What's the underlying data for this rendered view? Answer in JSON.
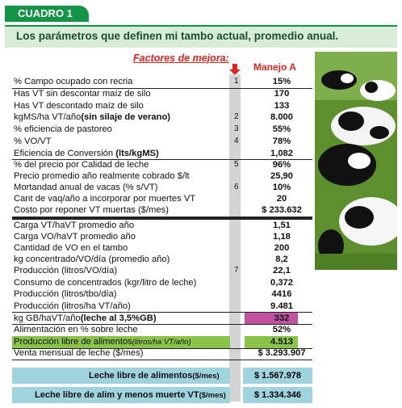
{
  "header": {
    "tab": "CUADRO 1",
    "subtitle": "Los parámetros que definen mi tambo actual, promedio anual."
  },
  "columns": {
    "factores": "Factores de mejora:",
    "manejo": "Manejo A"
  },
  "rows": [
    {
      "label": "% Campo ocupado con recria",
      "num": "1",
      "value": "15%"
    },
    {
      "label": "Has VT sin  descontar maíz de silo",
      "num": "",
      "value": "170"
    },
    {
      "label": "Has VT descontado maíz de silo",
      "num": "",
      "value": "133"
    },
    {
      "label": "kgMS/ha VT/año",
      "bold": "(sin silaje de verano)",
      "num": "2",
      "value": "8.000"
    },
    {
      "label": "% eficiencia de  pastoreo",
      "num": "3",
      "value": "55%"
    },
    {
      "label": "% VO/VT",
      "num": "4",
      "value": "78%"
    },
    {
      "label": "Eficiencia de Conversión ",
      "bold": "(lts/kgMS)",
      "num": "",
      "value": "1,082"
    },
    {
      "label": "% del precio por Calidad de leche",
      "num": "5",
      "value": "96%"
    },
    {
      "label": "Precio promedio año realmente cobrado $/lt",
      "num": "",
      "value": "25,90"
    },
    {
      "label": "Mortandad anual de vacas (% s/VT)",
      "num": "6",
      "value": "10%"
    },
    {
      "label": "Cant de vaq/año a incorporar por muertes VT",
      "num": "",
      "value": "20"
    },
    {
      "label": "Costo por reponer VT muertas ($/mes)",
      "num": "",
      "value": "$ 233.632"
    },
    {
      "label": "Carga VT/haVT promedio año",
      "num": "",
      "value": "1,51"
    },
    {
      "label": "Carga VO/haVT promedio año",
      "num": "",
      "value": "1,18"
    },
    {
      "label": "Cantidad de  VO en el tambo",
      "num": "",
      "value": "200"
    },
    {
      "label": "kg concentrado/VO/día (promedio año)",
      "num": "",
      "value": "8,2"
    },
    {
      "label": "Producción (litros/VO/día)",
      "num": "7",
      "value": "22,1"
    },
    {
      "label": "Consumo de concentrados (kgr/litro de leche)",
      "num": "",
      "value": "0,372"
    },
    {
      "label": "Producción (litros/tbo/día)",
      "num": "",
      "value": "4416"
    },
    {
      "label": "Producción (litros/ha VT/año)",
      "num": "",
      "value": "9.481"
    },
    {
      "label": "kg GB/haVT/año",
      "bold": "(leche al 3,5%GB)",
      "num": "",
      "value": "332"
    },
    {
      "label": "Alimentación en % sobre leche",
      "num": "",
      "value": "52%"
    },
    {
      "label": "Producción libre de alimentos",
      "italic": "(litros/ha VT/año)",
      "num": "",
      "value": "4.513"
    },
    {
      "label": "Venta mensual de leche ($/mes)",
      "num": "",
      "value": "$ 3.293.907"
    }
  ],
  "summary": [
    {
      "label": "Leche libre de alimentos",
      "unit": "($/mes)",
      "value": "$ 1.567.978"
    },
    {
      "label": "Leche libre de alim y menos muerte VT",
      "unit": "($/mes)",
      "value": "$ 1.334.346"
    }
  ],
  "colors": {
    "green": "#149447",
    "purple": "#c052a0",
    "lightgreen": "#8bc34a",
    "cyan": "#9fd3dd"
  }
}
